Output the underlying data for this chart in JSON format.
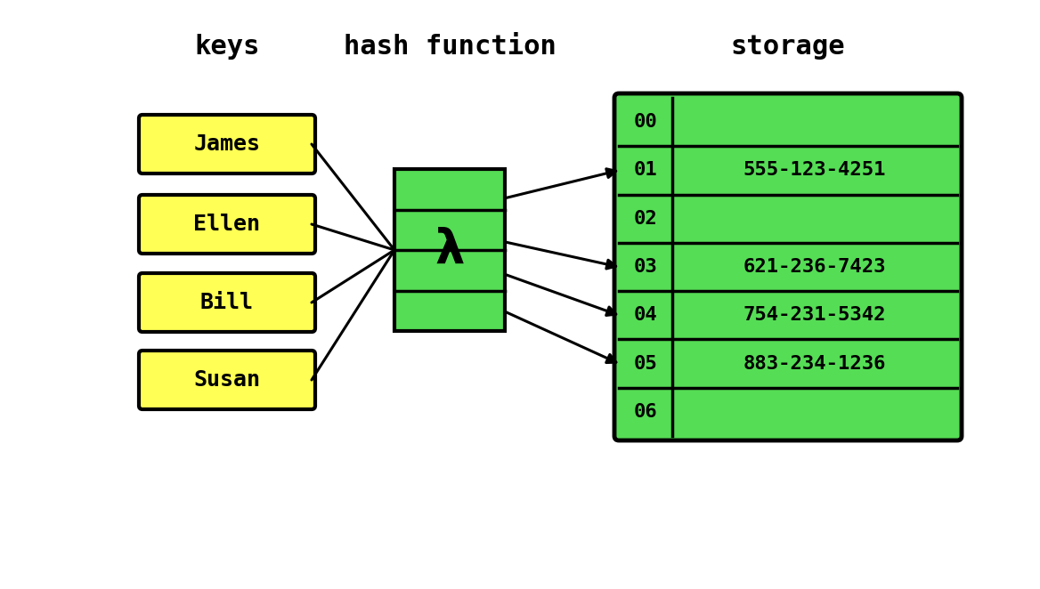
{
  "background_color": "#ffffff",
  "keys_label": "keys",
  "hash_label": "hash function",
  "storage_label": "storage",
  "key_names": [
    "James",
    "Ellen",
    "Bill",
    "Susan"
  ],
  "key_color": "#ffff55",
  "key_border_color": "#000000",
  "hash_box_color": "#55dd55",
  "hash_box_border_color": "#000000",
  "hash_symbol": "λ",
  "storage_color": "#55dd55",
  "storage_border_color": "#000000",
  "storage_rows": [
    "00",
    "01",
    "02",
    "03",
    "04",
    "05",
    "06"
  ],
  "storage_values": [
    "",
    "555-123-4251",
    "",
    "621-236-7423",
    "754-231-5342",
    "883-234-1236",
    ""
  ],
  "arrows_to_storage": [
    {
      "to_row": 1
    },
    {
      "to_row": 3
    },
    {
      "to_row": 4
    },
    {
      "to_row": 5
    }
  ],
  "label_fontsize": 22,
  "key_fontsize": 18,
  "lambda_fontsize": 38,
  "storage_idx_fontsize": 16,
  "storage_val_fontsize": 16
}
